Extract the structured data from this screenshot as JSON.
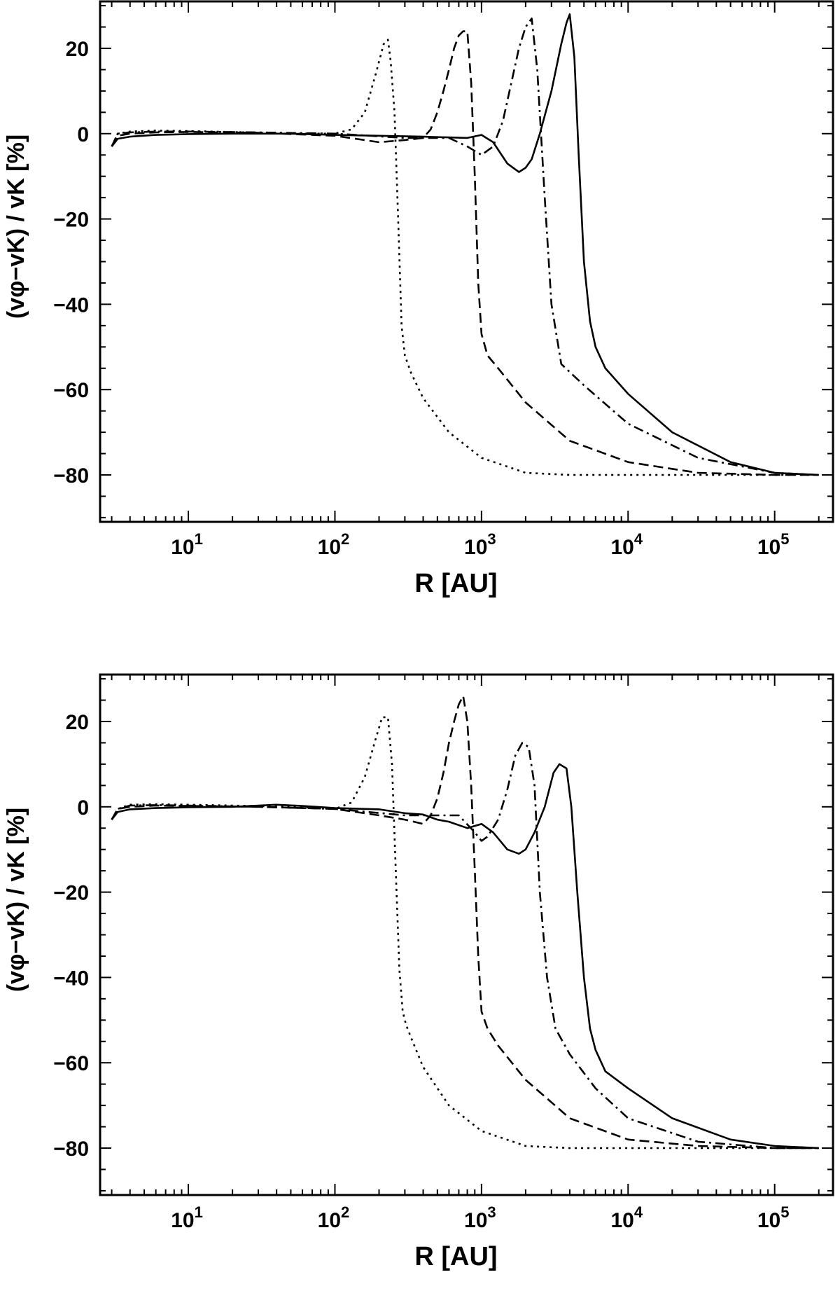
{
  "chart_data": [
    {
      "type": "line",
      "xlabel": "R [AU]",
      "ylabel": "(vφ−vK) / vK [%]",
      "xscale": "log",
      "xlim": [
        2.5,
        250000
      ],
      "ylim": [
        -91,
        31
      ],
      "xticks": [
        {
          "value": 10,
          "base": "10",
          "exp": "1"
        },
        {
          "value": 100,
          "base": "10",
          "exp": "2"
        },
        {
          "value": 1000,
          "base": "10",
          "exp": "3"
        },
        {
          "value": 10000,
          "base": "10",
          "exp": "4"
        },
        {
          "value": 100000,
          "base": "10",
          "exp": "5"
        }
      ],
      "yticks": [
        20,
        0,
        -20,
        -40,
        -60,
        -80
      ],
      "yticklabels": [
        "20",
        "0",
        "−20",
        "−40",
        "−60",
        "−80"
      ],
      "grid": false,
      "series": [
        {
          "style": "dotted",
          "x": [
            3,
            3.3,
            4,
            6,
            10,
            20,
            50,
            100,
            130,
            160,
            190,
            215,
            230,
            240,
            255,
            270,
            285,
            300,
            330,
            400,
            600,
            1000,
            2000,
            4000,
            10000,
            30000,
            100000,
            200000
          ],
          "y": [
            -3,
            0,
            0.5,
            0.7,
            0.6,
            0.4,
            0,
            0,
            1,
            5,
            14,
            21,
            22,
            17,
            5,
            -20,
            -45,
            -52,
            -56,
            -62,
            -70,
            -76,
            -79.5,
            -80,
            -80,
            -80,
            -80,
            -80
          ]
        },
        {
          "style": "dashed",
          "x": [
            3,
            3.3,
            4,
            6,
            10,
            30,
            100,
            200,
            300,
            400,
            450,
            500,
            550,
            600,
            650,
            700,
            750,
            800,
            850,
            900,
            950,
            1000,
            1100,
            1300,
            2000,
            4000,
            10000,
            30000,
            100000,
            200000
          ],
          "y": [
            -3,
            -0.5,
            0,
            0.3,
            0.4,
            0.2,
            -0.5,
            -2,
            -1.5,
            -1,
            1,
            5,
            10,
            15,
            20,
            23,
            24,
            24,
            12,
            -10,
            -35,
            -47,
            -52,
            -55,
            -63,
            -72,
            -77,
            -79.5,
            -80,
            -80
          ]
        },
        {
          "style": "dashdot",
          "x": [
            3,
            3.3,
            4,
            6,
            10,
            30,
            100,
            300,
            600,
            800,
            1000,
            1200,
            1400,
            1600,
            1800,
            2000,
            2200,
            2400,
            2700,
            3000,
            3500,
            5000,
            10000,
            30000,
            100000,
            200000
          ],
          "y": [
            -3,
            0,
            0.3,
            0.5,
            0.5,
            0.3,
            0,
            -1,
            -1,
            -3,
            -5,
            -3,
            3,
            12,
            20,
            25,
            27,
            15,
            -15,
            -40,
            -54,
            -59,
            -68,
            -76,
            -79.5,
            -80
          ]
        },
        {
          "style": "solid",
          "x": [
            3,
            3.3,
            4,
            6,
            10,
            20,
            50,
            100,
            200,
            400,
            800,
            1000,
            1200,
            1500,
            1800,
            2000,
            2200,
            2500,
            3000,
            3500,
            3800,
            4000,
            4300,
            4600,
            5000,
            5500,
            6000,
            7000,
            10000,
            20000,
            50000,
            100000,
            200000
          ],
          "y": [
            -3,
            -1.2,
            -0.7,
            -0.3,
            -0.1,
            0,
            0,
            -0.3,
            -0.5,
            -0.7,
            -1,
            -0.3,
            -2,
            -7,
            -9,
            -8,
            -6,
            0,
            10,
            21,
            26,
            28,
            18,
            -5,
            -30,
            -44,
            -50,
            -55,
            -61,
            -70,
            -77,
            -79.5,
            -80
          ]
        }
      ]
    },
    {
      "type": "line",
      "xlabel": "R [AU]",
      "ylabel": "(vφ−vK) / vK [%]",
      "xscale": "log",
      "xlim": [
        2.5,
        250000
      ],
      "ylim": [
        -91,
        31
      ],
      "xticks": [
        {
          "value": 10,
          "base": "10",
          "exp": "1"
        },
        {
          "value": 100,
          "base": "10",
          "exp": "2"
        },
        {
          "value": 1000,
          "base": "10",
          "exp": "3"
        },
        {
          "value": 10000,
          "base": "10",
          "exp": "4"
        },
        {
          "value": 100000,
          "base": "10",
          "exp": "5"
        }
      ],
      "yticks": [
        20,
        0,
        -20,
        -40,
        -60,
        -80
      ],
      "yticklabels": [
        "20",
        "0",
        "−20",
        "−40",
        "−60",
        "−80"
      ],
      "grid": false,
      "series": [
        {
          "style": "dotted",
          "x": [
            3,
            3.3,
            4,
            6,
            10,
            20,
            50,
            100,
            130,
            160,
            190,
            210,
            230,
            245,
            260,
            275,
            290,
            305,
            330,
            400,
            600,
            1000,
            2000,
            4000,
            10000,
            30000,
            100000,
            200000
          ],
          "y": [
            -3,
            -0.5,
            0.5,
            0.6,
            0.5,
            0.3,
            0,
            -0.5,
            1,
            7,
            16,
            21,
            21,
            10,
            -15,
            -38,
            -48,
            -51,
            -54,
            -61,
            -70,
            -76,
            -79.5,
            -80,
            -80,
            -80,
            -80,
            -80
          ]
        },
        {
          "style": "dashed",
          "x": [
            3,
            3.3,
            4,
            6,
            10,
            30,
            100,
            200,
            300,
            400,
            450,
            500,
            550,
            600,
            650,
            700,
            750,
            800,
            850,
            900,
            950,
            1000,
            1100,
            1300,
            2000,
            4000,
            10000,
            30000,
            100000,
            200000
          ],
          "y": [
            -3,
            -0.5,
            0,
            0.3,
            0.2,
            0,
            -0.5,
            -2,
            -3,
            -4,
            -2,
            2,
            8,
            15,
            20,
            24,
            26,
            20,
            5,
            -15,
            -35,
            -48,
            -52,
            -56,
            -64,
            -73,
            -78,
            -79.5,
            -80,
            -80
          ]
        },
        {
          "style": "dashdot",
          "x": [
            3,
            3.3,
            4,
            6,
            10,
            30,
            100,
            300,
            500,
            700,
            900,
            1000,
            1100,
            1300,
            1500,
            1700,
            1900,
            2100,
            2300,
            2500,
            2800,
            3200,
            4000,
            6000,
            10000,
            30000,
            100000,
            200000
          ],
          "y": [
            -3,
            -0.5,
            0.3,
            0.4,
            0.3,
            0,
            -0.5,
            -2,
            -2,
            -2,
            -6,
            -8,
            -7,
            -3,
            4,
            12,
            15,
            14,
            5,
            -20,
            -40,
            -52,
            -58,
            -66,
            -73,
            -78.5,
            -80,
            -80
          ]
        },
        {
          "style": "solid",
          "x": [
            3,
            3.3,
            4,
            6,
            10,
            20,
            40,
            60,
            100,
            200,
            300,
            400,
            500,
            600,
            800,
            1000,
            1200,
            1500,
            1800,
            2000,
            2300,
            2700,
            3100,
            3400,
            3800,
            4100,
            4500,
            5000,
            5500,
            6000,
            7000,
            10000,
            20000,
            50000,
            100000,
            200000
          ],
          "y": [
            -3,
            -1.2,
            -0.6,
            -0.3,
            -0.1,
            0,
            0.5,
            0.2,
            -0.3,
            -0.6,
            -1.5,
            -1.8,
            -3,
            -3.5,
            -5,
            -4,
            -6,
            -10,
            -11,
            -10,
            -6,
            0,
            8,
            10,
            9,
            0,
            -20,
            -40,
            -52,
            -57,
            -62,
            -66,
            -73,
            -78,
            -79.5,
            -80
          ]
        }
      ]
    }
  ]
}
